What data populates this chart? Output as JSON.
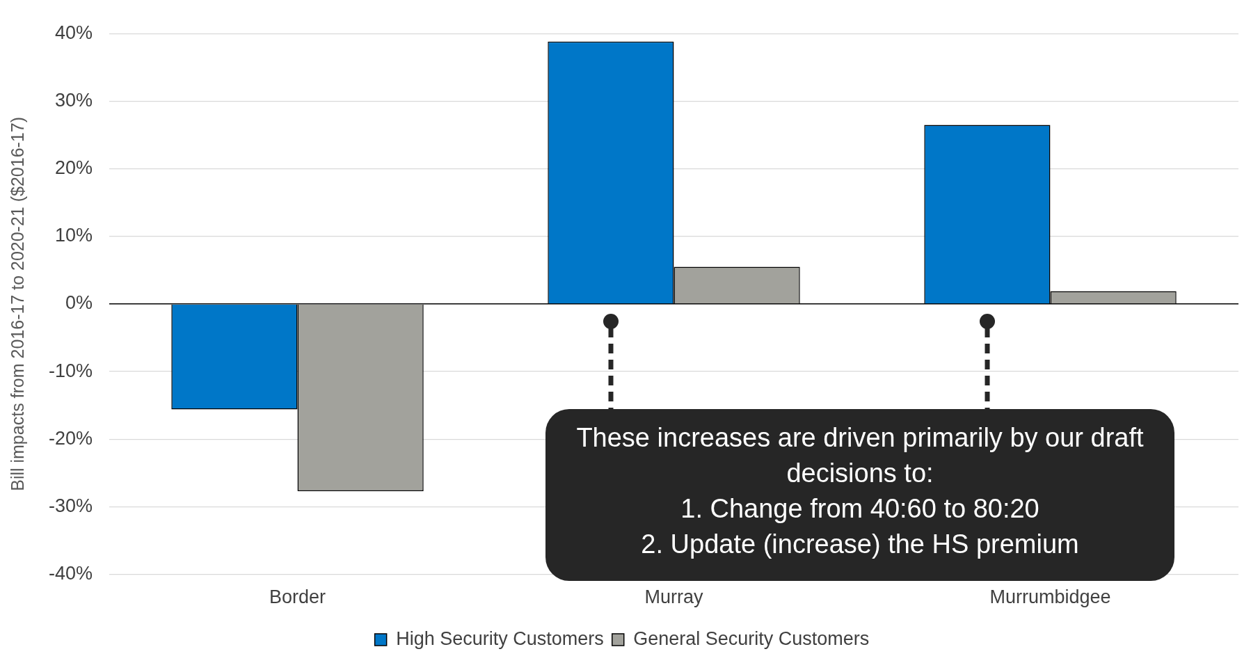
{
  "chart_data": {
    "type": "bar",
    "ylabel": "Bill impacts from 2016-17 to 2020-21 ($2016-17)",
    "categories": [
      "Border",
      "Murray",
      "Murrumbidgee"
    ],
    "series": [
      {
        "name": "High Security Customers",
        "color": "#0077c8",
        "values": [
          -15.6,
          38.8,
          26.5
        ]
      },
      {
        "name": "General Security Customers",
        "color": "#a2a29c",
        "values": [
          -27.7,
          5.5,
          1.9
        ]
      }
    ],
    "ylim": [
      -40,
      40
    ],
    "yticks": [
      {
        "value": -40,
        "label": "-40%"
      },
      {
        "value": -30,
        "label": "-30%"
      },
      {
        "value": -20,
        "label": "-20%"
      },
      {
        "value": -10,
        "label": "-10%"
      },
      {
        "value": 0,
        "label": "0%"
      },
      {
        "value": 10,
        "label": "10%"
      },
      {
        "value": 20,
        "label": "20%"
      },
      {
        "value": 30,
        "label": "30%"
      },
      {
        "value": 40,
        "label": "40%"
      }
    ],
    "grid": "y",
    "legend": "bottom",
    "annotations": [
      "These increases are driven primarily by our draft decisions to:",
      "1.   Change from 40:60 to 80:20",
      "2.   Update (increase) the HS premium"
    ]
  }
}
